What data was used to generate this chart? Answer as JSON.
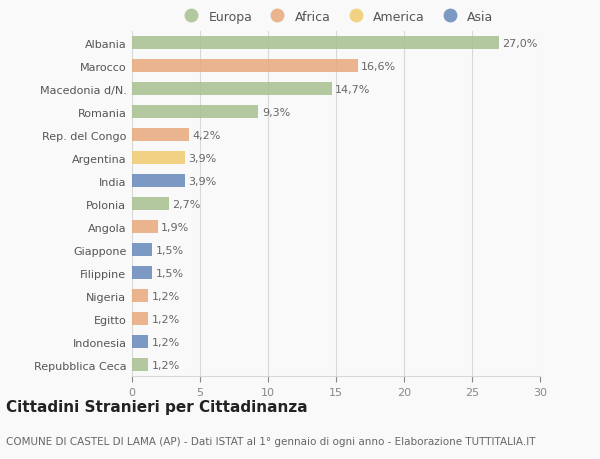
{
  "countries": [
    "Albania",
    "Marocco",
    "Macedonia d/N.",
    "Romania",
    "Rep. del Congo",
    "Argentina",
    "India",
    "Polonia",
    "Angola",
    "Giappone",
    "Filippine",
    "Nigeria",
    "Egitto",
    "Indonesia",
    "Repubblica Ceca"
  ],
  "values": [
    27.0,
    16.6,
    14.7,
    9.3,
    4.2,
    3.9,
    3.9,
    2.7,
    1.9,
    1.5,
    1.5,
    1.2,
    1.2,
    1.2,
    1.2
  ],
  "labels": [
    "27,0%",
    "16,6%",
    "14,7%",
    "9,3%",
    "4,2%",
    "3,9%",
    "3,9%",
    "2,7%",
    "1,9%",
    "1,5%",
    "1,5%",
    "1,2%",
    "1,2%",
    "1,2%",
    "1,2%"
  ],
  "continents": [
    "Europa",
    "Africa",
    "Europa",
    "Europa",
    "Africa",
    "America",
    "Asia",
    "Europa",
    "Africa",
    "Asia",
    "Asia",
    "Africa",
    "Africa",
    "Asia",
    "Europa"
  ],
  "colors": {
    "Europa": "#a8c090",
    "Africa": "#e8a87c",
    "America": "#f0cc70",
    "Asia": "#6688bb"
  },
  "legend_order": [
    "Europa",
    "Africa",
    "America",
    "Asia"
  ],
  "title": "Cittadini Stranieri per Cittadinanza",
  "subtitle": "COMUNE DI CASTEL DI LAMA (AP) - Dati ISTAT al 1° gennaio di ogni anno - Elaborazione TUTTITALIA.IT",
  "xlim": [
    0,
    30
  ],
  "xticks": [
    0,
    5,
    10,
    15,
    20,
    25,
    30
  ],
  "background_color": "#f9f9f9",
  "grid_color": "#d8d8d8",
  "title_fontsize": 11,
  "subtitle_fontsize": 7.5,
  "label_fontsize": 8,
  "tick_fontsize": 8,
  "legend_fontsize": 9
}
